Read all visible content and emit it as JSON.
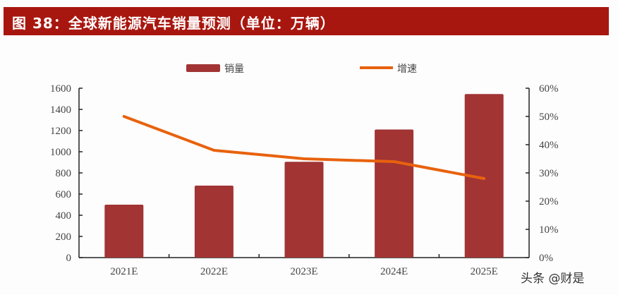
{
  "title": "图 38：全球新能源汽车销量预测（单位：万辆）",
  "watermark": "头条 @财是",
  "colors": {
    "title_bg": "#a8170f",
    "bar": "#a23434",
    "line": "#e8620e"
  },
  "legend": [
    {
      "label": "销量",
      "type": "bar",
      "color": "#a23434"
    },
    {
      "label": "增速",
      "type": "line",
      "color": "#e8620e"
    }
  ],
  "chart_data": {
    "type": "bar+line",
    "title": "全球新能源汽车销量预测（单位：万辆）",
    "categories": [
      "2021E",
      "2022E",
      "2023E",
      "2024E",
      "2025E"
    ],
    "series": [
      {
        "name": "销量",
        "type": "bar",
        "axis": "left",
        "values": [
          500,
          680,
          905,
          1210,
          1545
        ]
      },
      {
        "name": "增速",
        "type": "line",
        "axis": "right",
        "values": [
          0.5,
          0.38,
          0.35,
          0.34,
          0.28
        ]
      }
    ],
    "y_left": {
      "ticks": [
        "0",
        "200",
        "400",
        "600",
        "800",
        "1000",
        "1200",
        "1400",
        "1600"
      ],
      "range": [
        0,
        1600
      ]
    },
    "y_right": {
      "ticks": [
        "0%",
        "10%",
        "20%",
        "30%",
        "40%",
        "50%",
        "60%"
      ],
      "range": [
        0,
        0.6
      ]
    },
    "xlabel": "",
    "ylabel": "",
    "grid": false,
    "legend_position": "top"
  }
}
